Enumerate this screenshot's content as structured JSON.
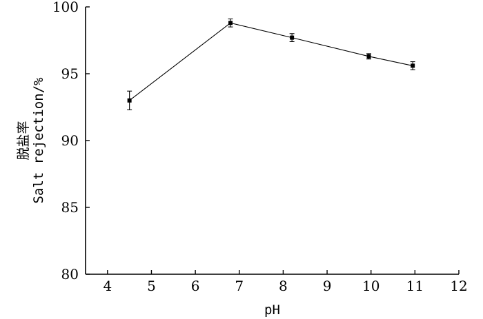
{
  "chart_data": {
    "type": "line",
    "title": "",
    "xlabel": "pH",
    "ylabel_line1": "脱盐率",
    "ylabel_line2": "Salt rejection/%",
    "xlim": [
      3.5,
      12
    ],
    "ylim": [
      80,
      100
    ],
    "xticks": [
      4,
      5,
      6,
      7,
      8,
      9,
      10,
      11,
      12
    ],
    "yticks": [
      80,
      85,
      90,
      95,
      100
    ],
    "grid": false,
    "series": [
      {
        "x": [
          4.5,
          6.8,
          8.2,
          9.95,
          10.95
        ],
        "y": [
          93.0,
          98.8,
          97.7,
          96.3,
          95.6
        ],
        "err": [
          0.7,
          0.3,
          0.3,
          0.2,
          0.3
        ]
      }
    ]
  }
}
